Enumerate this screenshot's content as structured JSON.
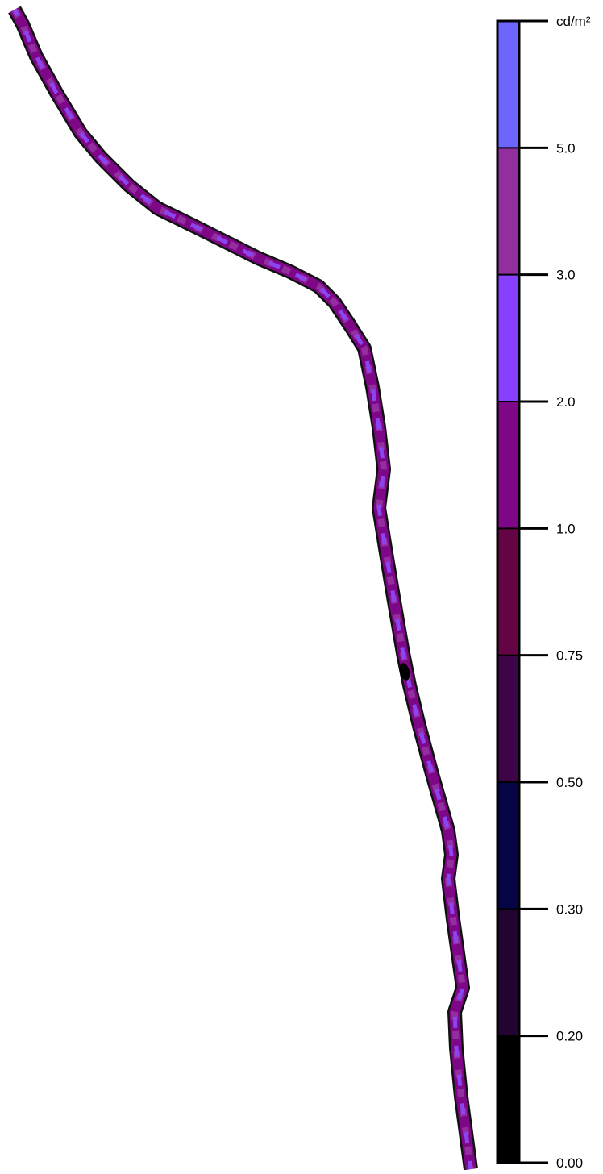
{
  "legend": {
    "unit": "cd/m²",
    "bands": [
      {
        "from": "0.00",
        "to": "0.20",
        "color": "#000000"
      },
      {
        "from": "0.20",
        "to": "0.30",
        "color": "#230430"
      },
      {
        "from": "0.30",
        "to": "0.50",
        "color": "#050545"
      },
      {
        "from": "0.50",
        "to": "0.75",
        "color": "#3d0448"
      },
      {
        "from": "0.75",
        "to": "1.0",
        "color": "#650444"
      },
      {
        "from": "1.0",
        "to": "2.0",
        "color": "#7e0787"
      },
      {
        "from": "2.0",
        "to": "3.0",
        "color": "#8740fe"
      },
      {
        "from": "3.0",
        "to": "5.0",
        "color": "#932e9e"
      },
      {
        "from": "5.0",
        "to": "",
        "color": "#6c66ff"
      }
    ],
    "tick_labels": [
      "0.00",
      "0.20",
      "0.30",
      "0.50",
      "0.75",
      "1.0",
      "2.0",
      "3.0",
      "5.0"
    ]
  },
  "road": {
    "base_color": "#7e0787",
    "outline_color": "#111111",
    "highlight_color": "#8a44f0",
    "accent_color": "#932e9e"
  }
}
